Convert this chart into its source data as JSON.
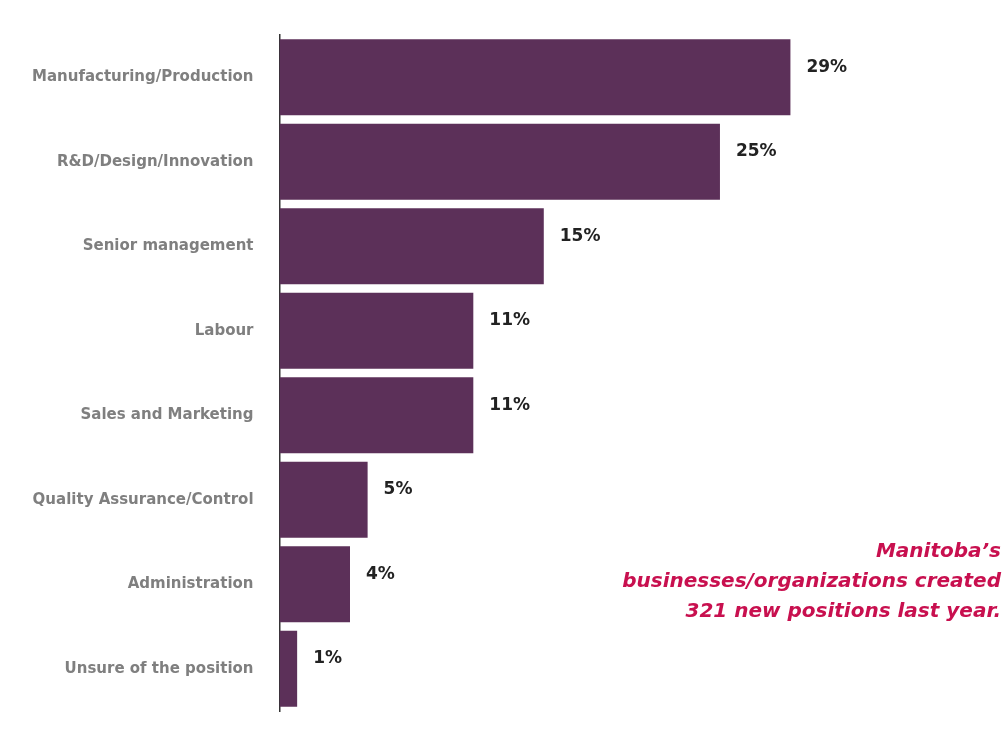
{
  "chart_data": {
    "type": "bar",
    "orientation": "horizontal",
    "categories": [
      "Manufacturing/Production",
      "R&D/Design/Innovation",
      "Senior management",
      "Labour",
      "Sales and Marketing",
      "Quality Assurance/Control",
      "Administration",
      "Unsure of the position"
    ],
    "values": [
      29,
      25,
      15,
      11,
      11,
      5,
      4,
      1
    ],
    "value_labels": [
      "29%",
      "25%",
      "15%",
      "11%",
      "11%",
      "5%",
      "4%",
      "1%"
    ],
    "color": "#5c3059",
    "grid": false,
    "legend": false,
    "annotations": [
      "Manitoba’s businesses/organizations created 321 new positions last year."
    ]
  }
}
